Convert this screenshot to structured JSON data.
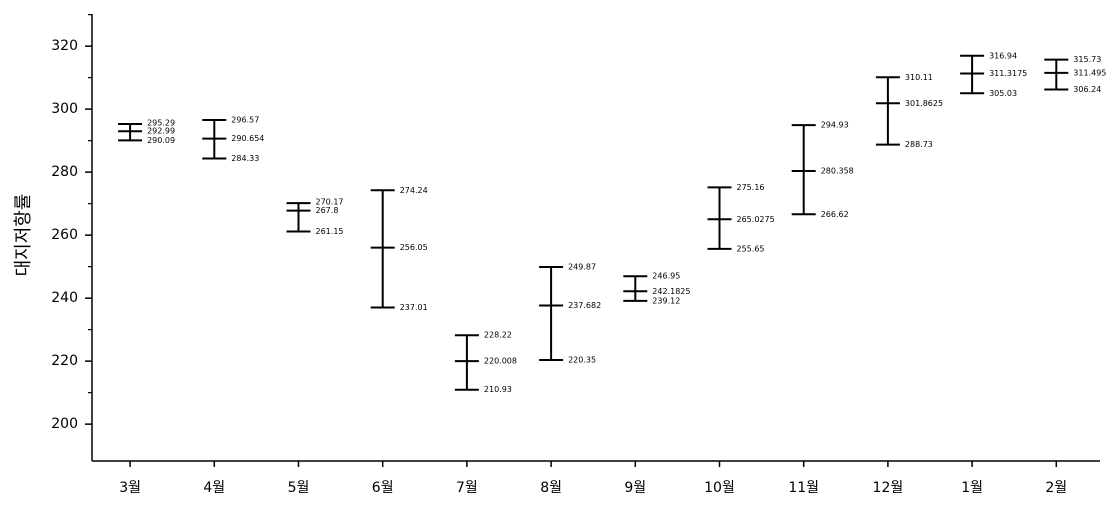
{
  "chart_data": {
    "type": "hilo",
    "y_label": "대지저항률",
    "categories": [
      "3월",
      "4월",
      "5월",
      "6월",
      "7월",
      "8월",
      "9월",
      "10월",
      "11월",
      "12월",
      "1월",
      "2월"
    ],
    "high": [
      295.29,
      296.57,
      270.17,
      274.24,
      228.22,
      249.87,
      246.95,
      275.16,
      294.93,
      310.11,
      316.94,
      315.73
    ],
    "mean": [
      292.99,
      290.654,
      267.8,
      256.05,
      220.008,
      237.682,
      242.1825,
      265.0275,
      280.358,
      301.8625,
      311.3175,
      311.495
    ],
    "low": [
      290.09,
      284.33,
      261.15,
      237.01,
      210.93,
      220.35,
      239.12,
      255.65,
      266.62,
      288.73,
      305.03,
      306.24
    ],
    "color": "#000000",
    "ylim": [
      188.3,
      330.2
    ],
    "yticks": [
      200,
      220,
      240,
      260,
      280,
      300,
      320
    ],
    "minor_yticks": [
      210,
      230,
      250,
      270,
      290,
      310,
      330
    ]
  }
}
